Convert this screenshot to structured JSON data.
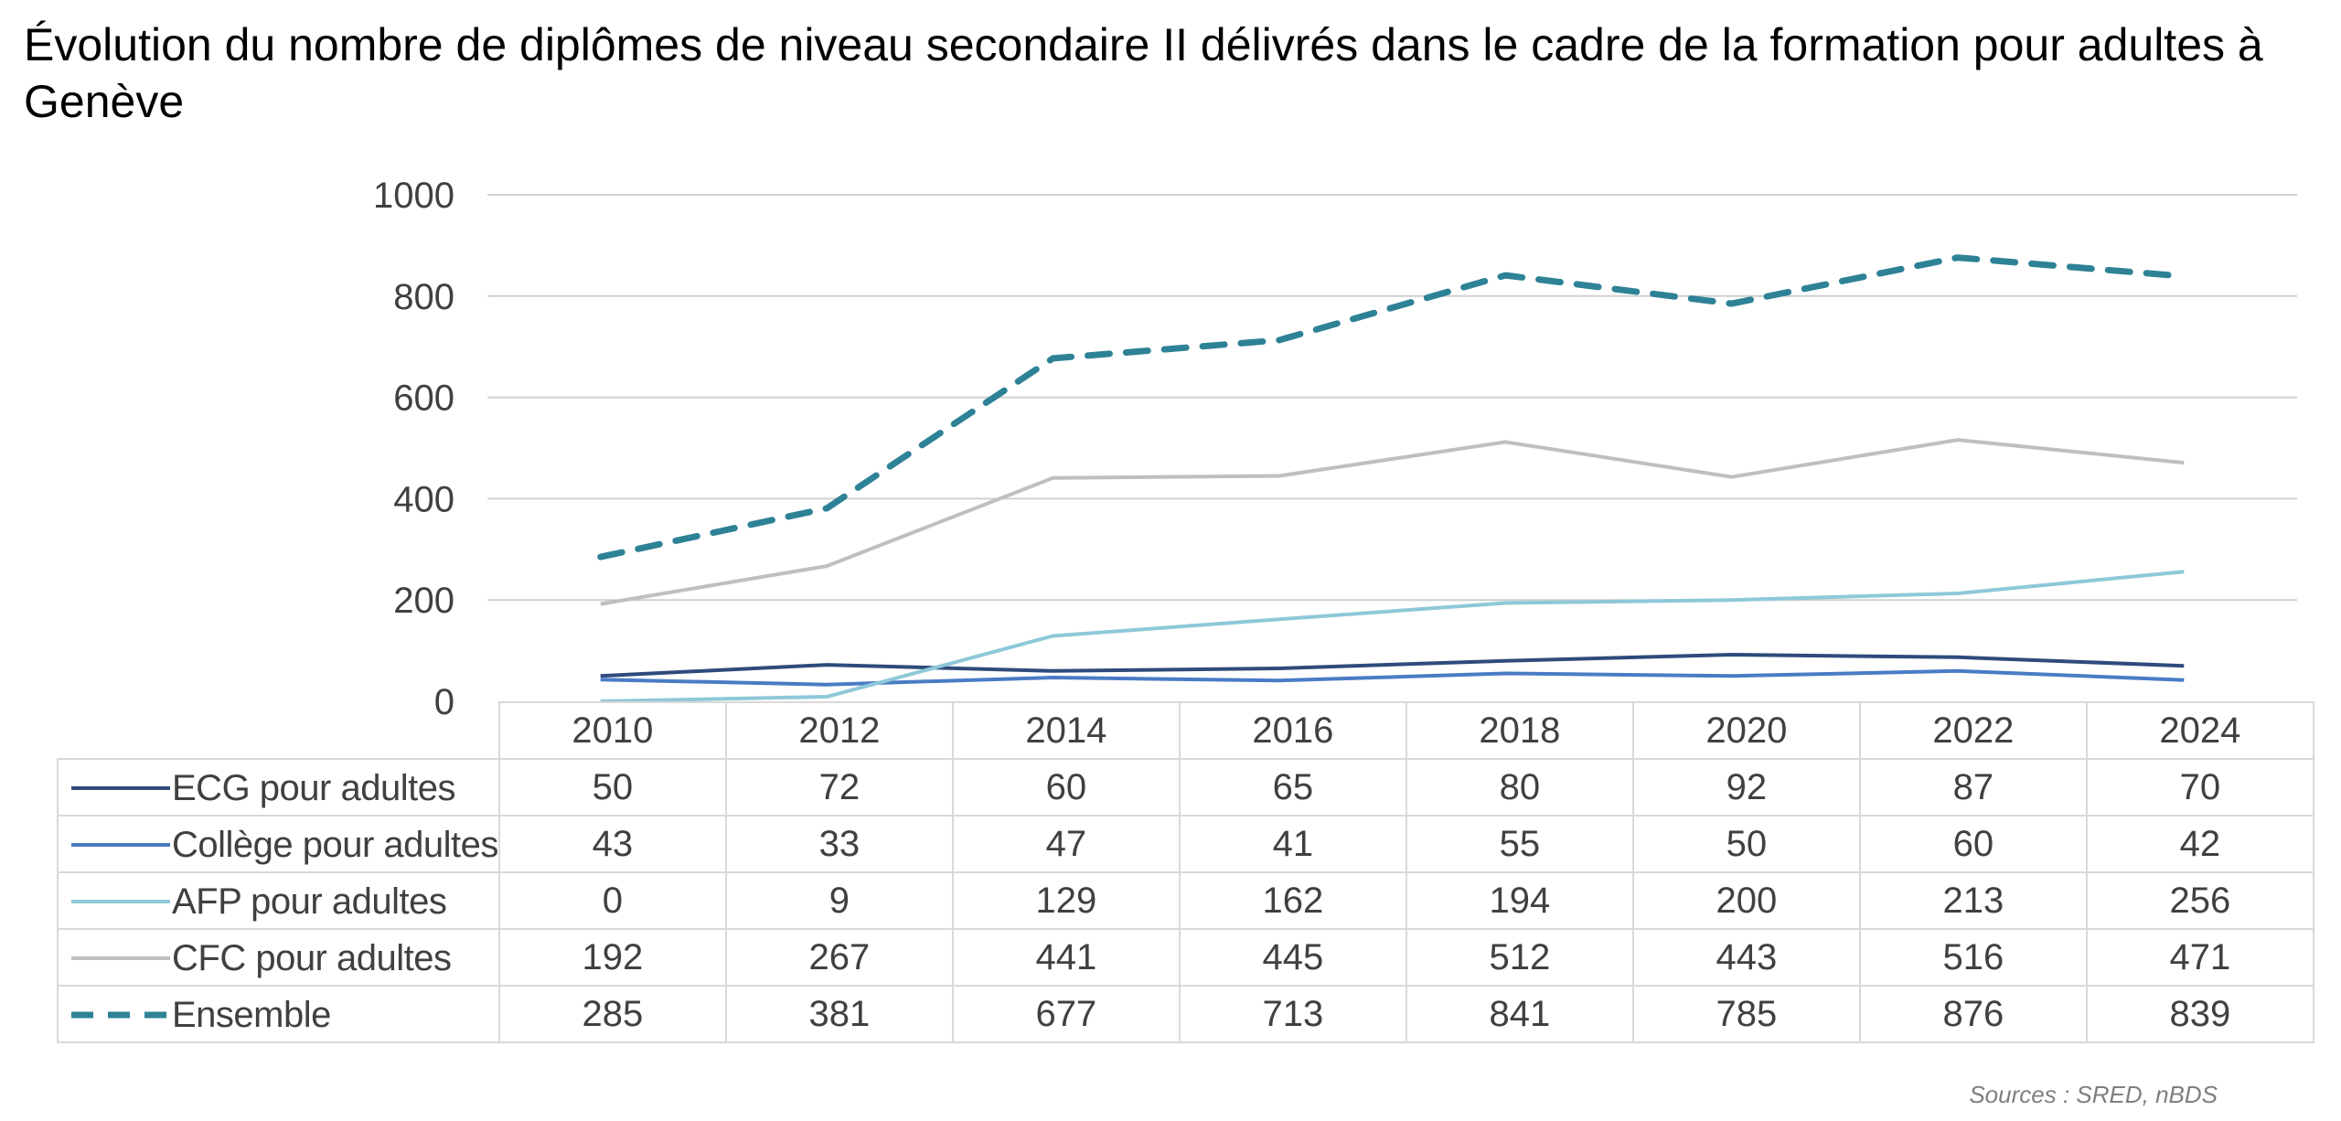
{
  "title": "Évolution du nombre de diplômes de niveau secondaire II délivrés dans le cadre de la formation pour adultes à Genève",
  "source": "Sources : SRED, nBDS",
  "chart_data": {
    "type": "line",
    "title": "Évolution du nombre de diplômes de niveau secondaire II délivrés dans le cadre de la formation pour adultes à Genève",
    "xlabel": "",
    "ylabel": "",
    "x": [
      "2010",
      "2012",
      "2014",
      "2016",
      "2018",
      "2020",
      "2022",
      "2024"
    ],
    "ylim": [
      0,
      1000
    ],
    "yticks": [
      "0",
      "200",
      "400",
      "600",
      "800",
      "1000"
    ],
    "ytick_values": [
      0,
      200,
      400,
      600,
      800,
      1000
    ],
    "grid": true,
    "legend": "data-table",
    "series": [
      {
        "name": "ECG pour adultes",
        "values": [
          50,
          72,
          60,
          65,
          80,
          92,
          87,
          70
        ],
        "color": "#2f4b7c",
        "dash": false
      },
      {
        "name": "Collège pour adultes",
        "values": [
          43,
          33,
          47,
          41,
          55,
          50,
          60,
          42
        ],
        "color": "#4a7bc5",
        "dash": false
      },
      {
        "name": "AFP pour adultes",
        "values": [
          0,
          9,
          129,
          162,
          194,
          200,
          213,
          256
        ],
        "color": "#8ec8d8",
        "dash": false
      },
      {
        "name": "CFC pour adultes",
        "values": [
          192,
          267,
          441,
          445,
          512,
          443,
          516,
          471
        ],
        "color": "#bfbfbf",
        "dash": false
      },
      {
        "name": "Ensemble",
        "values": [
          285,
          381,
          677,
          713,
          841,
          785,
          876,
          839
        ],
        "color": "#2e8296",
        "dash": true
      }
    ]
  }
}
